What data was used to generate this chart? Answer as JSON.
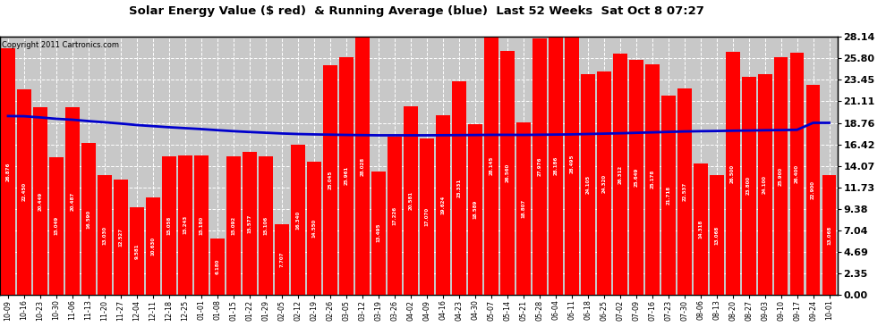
{
  "title": "Solar Energy Value ($ red)  & Running Average (blue)  Last 52 Weeks  Sat Oct 8 07:27",
  "copyright": "Copyright 2011 Cartronics.com",
  "bar_color": "#ff0000",
  "line_color": "#0000cc",
  "background_color": "#ffffff",
  "plot_bg_color": "#c8c8c8",
  "ylim": [
    0.0,
    28.14
  ],
  "yticks": [
    0.0,
    2.35,
    4.69,
    7.04,
    9.38,
    11.73,
    14.07,
    16.42,
    18.76,
    21.11,
    23.45,
    25.8,
    28.14
  ],
  "categories": [
    "10-09",
    "10-16",
    "10-23",
    "10-30",
    "11-06",
    "11-13",
    "11-20",
    "11-27",
    "12-04",
    "12-11",
    "12-18",
    "12-25",
    "01-01",
    "01-08",
    "01-15",
    "01-22",
    "01-29",
    "02-05",
    "02-12",
    "02-19",
    "02-26",
    "03-05",
    "03-12",
    "03-19",
    "03-26",
    "04-02",
    "04-09",
    "04-16",
    "04-23",
    "04-30",
    "05-07",
    "05-14",
    "05-21",
    "05-28",
    "06-04",
    "06-11",
    "06-18",
    "06-25",
    "07-02",
    "07-09",
    "07-16",
    "07-23",
    "07-30",
    "08-06",
    "08-13",
    "08-20",
    "08-27",
    "09-03",
    "09-10",
    "09-17",
    "09-24",
    "10-01"
  ],
  "values": [
    26.876,
    22.45,
    20.449,
    15.049,
    20.487,
    16.59,
    13.03,
    12.527,
    9.581,
    10.63,
    15.058,
    15.243,
    15.18,
    6.18,
    15.092,
    15.577,
    15.106,
    7.707,
    16.34,
    14.55,
    25.045,
    25.961,
    28.028,
    13.495,
    17.226,
    20.581,
    17.07,
    19.624,
    23.331,
    18.589,
    28.145,
    26.56,
    18.807,
    27.976,
    28.186,
    28.495,
    24.105,
    24.32,
    26.312,
    25.649,
    25.178,
    21.718,
    22.537,
    14.318,
    13.068,
    26.5,
    23.8,
    24.1,
    25.9,
    26.4,
    22.9,
    13.068
  ],
  "running_avg": [
    19.5,
    19.48,
    19.35,
    19.2,
    19.1,
    18.95,
    18.82,
    18.68,
    18.52,
    18.4,
    18.28,
    18.18,
    18.08,
    17.96,
    17.85,
    17.76,
    17.68,
    17.6,
    17.54,
    17.5,
    17.47,
    17.44,
    17.42,
    17.4,
    17.4,
    17.4,
    17.4,
    17.41,
    17.42,
    17.43,
    17.45,
    17.45,
    17.44,
    17.46,
    17.48,
    17.5,
    17.54,
    17.58,
    17.62,
    17.67,
    17.72,
    17.77,
    17.82,
    17.85,
    17.87,
    17.9,
    17.92,
    17.95,
    17.97,
    18.0,
    18.76,
    18.76
  ]
}
